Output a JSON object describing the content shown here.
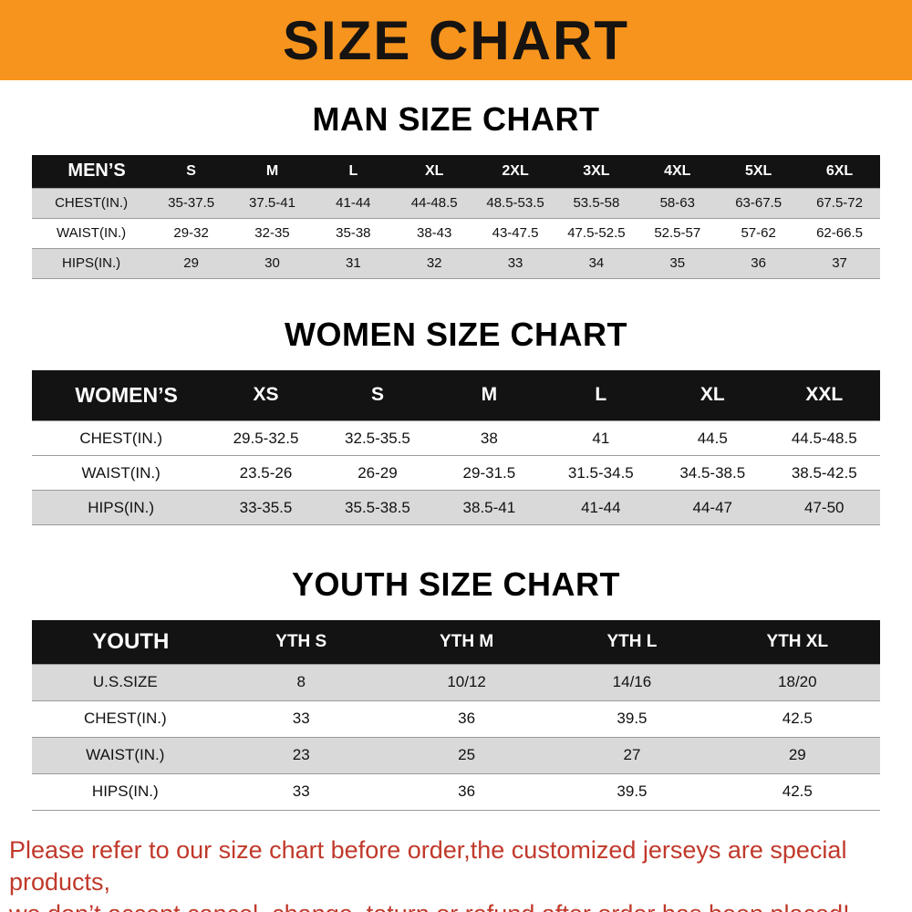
{
  "banner": {
    "title": "SIZE CHART",
    "bg_color": "#f7941d",
    "text_color": "#161311"
  },
  "sections": [
    {
      "id": "men",
      "heading": "MAN SIZE CHART",
      "table": {
        "header_label": "MEN’S",
        "columns": [
          "S",
          "M",
          "L",
          "XL",
          "2XL",
          "3XL",
          "4XL",
          "5XL",
          "6XL"
        ],
        "rows": [
          {
            "label": "CHEST(IN.)",
            "shaded": true,
            "values": [
              "35-37.5",
              "37.5-41",
              "41-44",
              "44-48.5",
              "48.5-53.5",
              "53.5-58",
              "58-63",
              "63-67.5",
              "67.5-72"
            ]
          },
          {
            "label": "WAIST(IN.)",
            "shaded": false,
            "values": [
              "29-32",
              "32-35",
              "35-38",
              "38-43",
              "43-47.5",
              "47.5-52.5",
              "52.5-57",
              "57-62",
              "62-66.5"
            ]
          },
          {
            "label": "HIPS(IN.)",
            "shaded": true,
            "values": [
              "29",
              "30",
              "31",
              "32",
              "33",
              "34",
              "35",
              "36",
              "37"
            ]
          }
        ]
      }
    },
    {
      "id": "women",
      "heading": "WOMEN SIZE CHART",
      "table": {
        "header_label": "WOMEN’S",
        "columns": [
          "XS",
          "S",
          "M",
          "L",
          "XL",
          "XXL"
        ],
        "rows": [
          {
            "label": "CHEST(IN.)",
            "shaded": false,
            "values": [
              "29.5-32.5",
              "32.5-35.5",
              "38",
              "41",
              "44.5",
              "44.5-48.5"
            ]
          },
          {
            "label": "WAIST(IN.)",
            "shaded": false,
            "values": [
              "23.5-26",
              "26-29",
              "29-31.5",
              "31.5-34.5",
              "34.5-38.5",
              "38.5-42.5"
            ]
          },
          {
            "label": "HIPS(IN.)",
            "shaded": true,
            "values": [
              "33-35.5",
              "35.5-38.5",
              "38.5-41",
              "41-44",
              "44-47",
              "47-50"
            ]
          }
        ]
      }
    },
    {
      "id": "youth",
      "heading": "YOUTH SIZE CHART",
      "table": {
        "header_label": "YOUTH",
        "columns": [
          "YTH S",
          "YTH M",
          "YTH L",
          "YTH XL"
        ],
        "rows": [
          {
            "label": "U.S.SIZE",
            "shaded": true,
            "values": [
              "8",
              "10/12",
              "14/16",
              "18/20"
            ]
          },
          {
            "label": "CHEST(IN.)",
            "shaded": false,
            "values": [
              "33",
              "36",
              "39.5",
              "42.5"
            ]
          },
          {
            "label": "WAIST(IN.)",
            "shaded": true,
            "values": [
              "23",
              "25",
              "27",
              "29"
            ]
          },
          {
            "label": "HIPS(IN.)",
            "shaded": false,
            "values": [
              "33",
              "36",
              "39.5",
              "42.5"
            ]
          }
        ]
      }
    }
  ],
  "footer": {
    "lines": [
      "Please refer to our size chart before order,the customized jerseys are special products,",
      "we don’t accept cancel, change, teturn or refund after order has been placed!"
    ],
    "text_color": "#c0392b"
  },
  "colors": {
    "table_header_bg": "#131313",
    "table_header_text": "#ffffff",
    "row_shaded_bg": "#d9d9d9",
    "row_plain_bg": "#ffffff",
    "row_divider": "#9b9b9b"
  }
}
